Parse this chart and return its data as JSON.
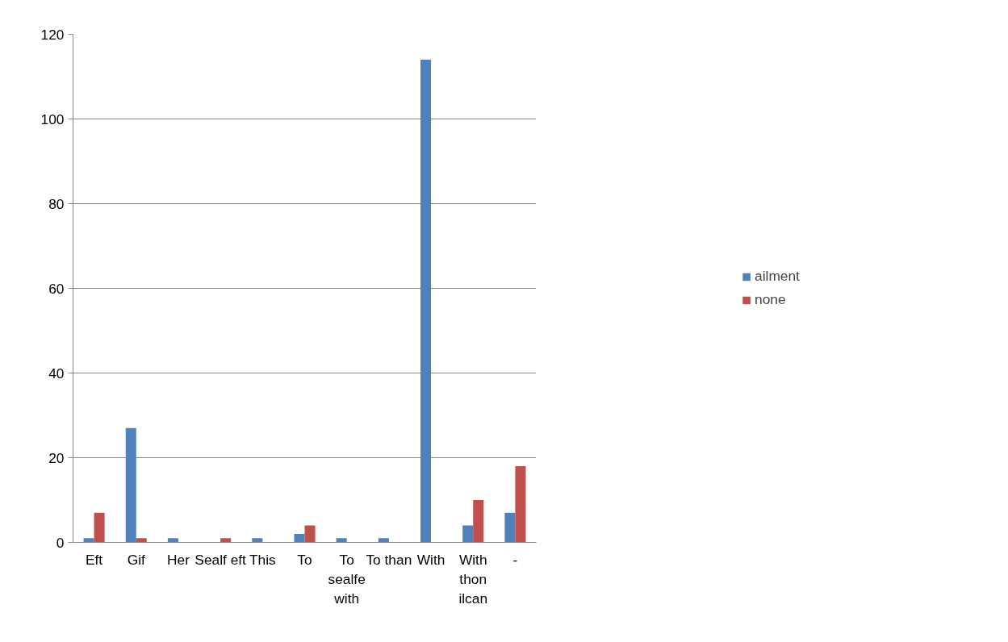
{
  "chart_data": {
    "type": "bar",
    "categories": [
      "Eft",
      "Gif",
      "Her",
      "Sealf eft",
      "This",
      "To",
      "To\nsealfe\nwith",
      "To than",
      "With",
      "With\nthon\nilcan",
      "-"
    ],
    "series": [
      {
        "name": "ailment",
        "color": "#4f81bd",
        "values": [
          1,
          27,
          1,
          0,
          1,
          2,
          1,
          1,
          114,
          4,
          7
        ]
      },
      {
        "name": "none",
        "color": "#c0504d",
        "values": [
          7,
          1,
          0,
          1,
          0,
          4,
          0,
          0,
          0,
          10,
          18
        ]
      }
    ],
    "ylim": [
      0,
      120
    ],
    "yticks": [
      0,
      20,
      40,
      60,
      80,
      100,
      120
    ],
    "grid": "y",
    "legend": "right"
  }
}
